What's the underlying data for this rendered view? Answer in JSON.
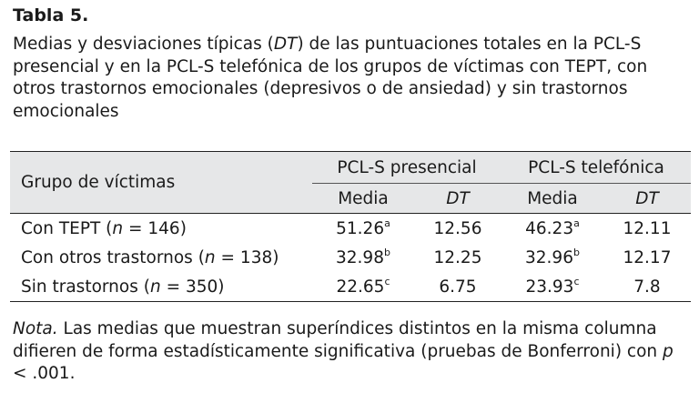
{
  "title": "Tabla 5.",
  "caption": {
    "part1": "Medias y desviaciones típicas (",
    "dt": "DT",
    "part2": ") de las puntuaciones totales en la PCL-S presencial y en la PCL-S telefónica de los grupos de víctimas con TEPT, con otros trastornos emocionales (depresivos o de ansiedad) y sin trastornos emocionales"
  },
  "table": {
    "group_header": "Grupo de víctimas",
    "col_groups": [
      "PCL-S presencial",
      "PCL-S telefónica"
    ],
    "sub_headers": [
      "Media",
      "DT",
      "Media",
      "DT"
    ],
    "rows": [
      {
        "label": "Con TEPT (",
        "n": "n",
        "n_value": " = 146)",
        "m1": "51.26",
        "s1": "a",
        "dt1": "12.56",
        "m2": "46.23",
        "s2": "a",
        "dt2": "12.11"
      },
      {
        "label": "Con otros trastornos (",
        "n": "n",
        "n_value": " = 138)",
        "m1": "32.98",
        "s1": "b",
        "dt1": "12.25",
        "m2": "32.96",
        "s2": "b",
        "dt2": "12.17"
      },
      {
        "label": "Sin trastornos (",
        "n": "n",
        "n_value": " = 350)",
        "m1": "22.65",
        "s1": "c",
        "dt1": "6.75",
        "m2": "23.93",
        "s2": "c",
        "dt2": "7.8"
      }
    ]
  },
  "note": {
    "label": "Nota.",
    "text": " Las medias que muestran superíndices distintos en la misma columna difieren de forma estadísticamente significativa (pruebas de Bonferroni) con ",
    "p": "p",
    "p_value": " < .001."
  }
}
